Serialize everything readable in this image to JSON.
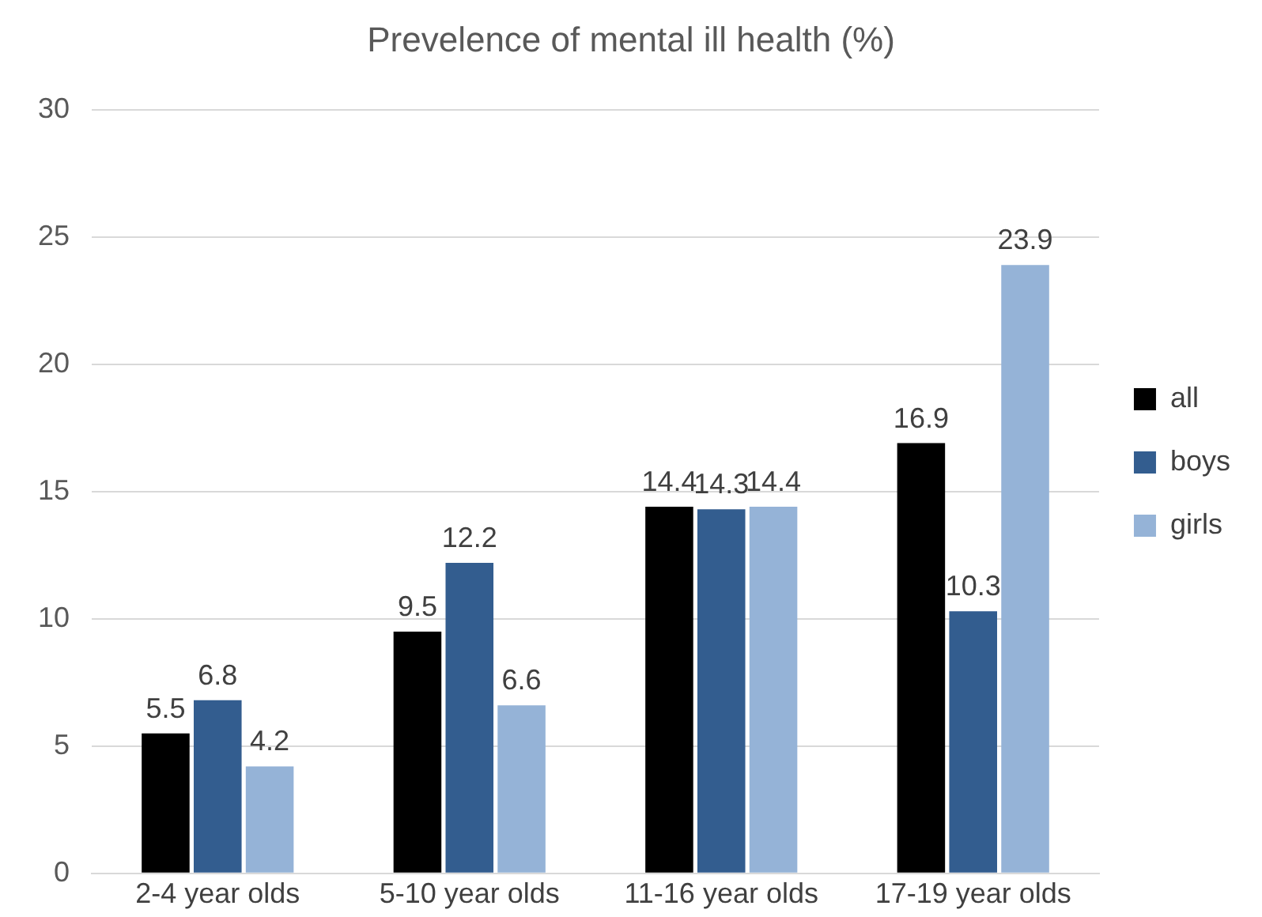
{
  "chart_data": {
    "type": "bar",
    "title": "Prevelence of mental ill health (%)",
    "categories": [
      "2-4 year olds",
      "5-10 year olds",
      "11-16 year olds",
      "17-19 year olds"
    ],
    "series": [
      {
        "name": "all",
        "color": "#000000",
        "values": [
          5.5,
          9.5,
          14.4,
          16.9
        ]
      },
      {
        "name": "boys",
        "color": "#335d8f",
        "values": [
          6.8,
          12.2,
          14.3,
          10.3
        ]
      },
      {
        "name": "girls",
        "color": "#95b3d7",
        "values": [
          4.2,
          6.6,
          14.4,
          23.9
        ]
      }
    ],
    "ylim": [
      0,
      30
    ],
    "yticks": [
      0,
      5,
      10,
      15,
      20,
      25,
      30
    ],
    "grid": "y",
    "legend": "right",
    "data_labels": true
  }
}
